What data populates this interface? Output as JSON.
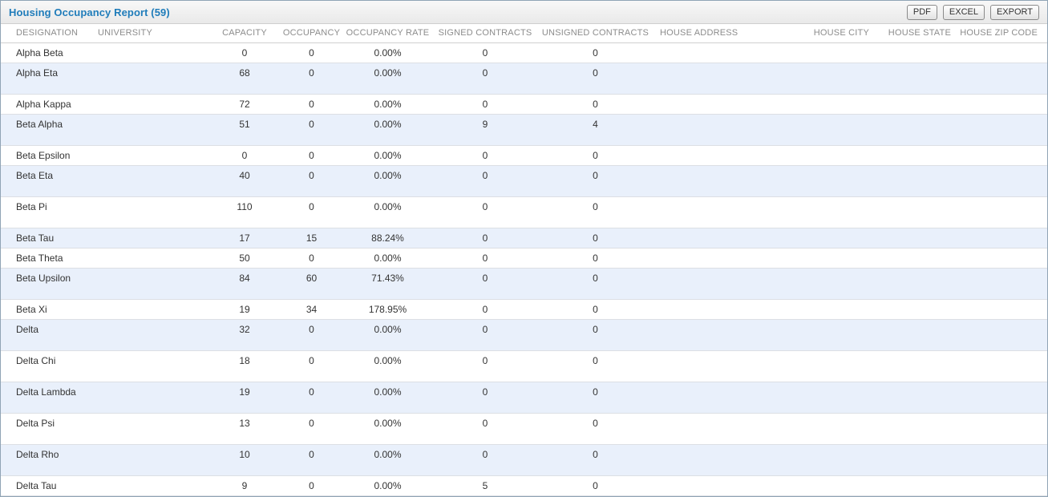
{
  "panel": {
    "title": "Housing Occupancy Report (59)"
  },
  "toolbar": {
    "buttons": [
      {
        "label": "PDF"
      },
      {
        "label": "EXCEL"
      },
      {
        "label": "EXPORT"
      }
    ]
  },
  "colors": {
    "title_text": "#1f7cba",
    "header_text": "#8c8c8c",
    "alt_row_background": "#e9f0fb",
    "panel_border": "#90a4b5",
    "row_text": "#333333"
  },
  "table": {
    "columns": [
      {
        "key": "designation",
        "label": "DESIGNATION",
        "align": "left"
      },
      {
        "key": "university",
        "label": "UNIVERSITY",
        "align": "left"
      },
      {
        "key": "capacity",
        "label": "CAPACITY",
        "align": "center"
      },
      {
        "key": "occupancy",
        "label": "OCCUPANCY",
        "align": "center"
      },
      {
        "key": "occupancy_rate",
        "label": "OCCUPANCY RATE",
        "align": "center"
      },
      {
        "key": "signed_contracts",
        "label": "SIGNED CONTRACTS",
        "align": "center"
      },
      {
        "key": "unsigned_contracts",
        "label": "UNSIGNED CONTRACTS",
        "align": "center"
      },
      {
        "key": "house_address",
        "label": "HOUSE ADDRESS",
        "align": "left"
      },
      {
        "key": "house_city",
        "label": "HOUSE CITY",
        "align": "right"
      },
      {
        "key": "house_state",
        "label": "HOUSE STATE",
        "align": "right"
      },
      {
        "key": "house_zip",
        "label": "HOUSE ZIP CODE",
        "align": "right"
      }
    ],
    "rows": [
      {
        "designation": "Alpha Beta",
        "university": "",
        "capacity": "0",
        "occupancy": "0",
        "occupancy_rate": "0.00%",
        "signed_contracts": "0",
        "unsigned_contracts": "0",
        "house_address": "",
        "house_city": "",
        "house_state": "",
        "house_zip": "",
        "tall": false
      },
      {
        "designation": "Alpha Eta",
        "university": "",
        "capacity": "68",
        "occupancy": "0",
        "occupancy_rate": "0.00%",
        "signed_contracts": "0",
        "unsigned_contracts": "0",
        "house_address": "",
        "house_city": "",
        "house_state": "",
        "house_zip": "",
        "tall": true
      },
      {
        "designation": "Alpha Kappa",
        "university": "",
        "capacity": "72",
        "occupancy": "0",
        "occupancy_rate": "0.00%",
        "signed_contracts": "0",
        "unsigned_contracts": "0",
        "house_address": "",
        "house_city": "",
        "house_state": "",
        "house_zip": "",
        "tall": false
      },
      {
        "designation": "Beta Alpha",
        "university": "",
        "capacity": "51",
        "occupancy": "0",
        "occupancy_rate": "0.00%",
        "signed_contracts": "9",
        "unsigned_contracts": "4",
        "house_address": "",
        "house_city": "",
        "house_state": "",
        "house_zip": "",
        "tall": true
      },
      {
        "designation": "Beta Epsilon",
        "university": "",
        "capacity": "0",
        "occupancy": "0",
        "occupancy_rate": "0.00%",
        "signed_contracts": "0",
        "unsigned_contracts": "0",
        "house_address": "",
        "house_city": "",
        "house_state": "",
        "house_zip": "",
        "tall": false
      },
      {
        "designation": "Beta Eta",
        "university": "",
        "capacity": "40",
        "occupancy": "0",
        "occupancy_rate": "0.00%",
        "signed_contracts": "0",
        "unsigned_contracts": "0",
        "house_address": "",
        "house_city": "",
        "house_state": "",
        "house_zip": "",
        "tall": true
      },
      {
        "designation": "Beta Pi",
        "university": "",
        "capacity": "110",
        "occupancy": "0",
        "occupancy_rate": "0.00%",
        "signed_contracts": "0",
        "unsigned_contracts": "0",
        "house_address": "",
        "house_city": "",
        "house_state": "",
        "house_zip": "",
        "tall": true
      },
      {
        "designation": "Beta Tau",
        "university": "",
        "capacity": "17",
        "occupancy": "15",
        "occupancy_rate": "88.24%",
        "signed_contracts": "0",
        "unsigned_contracts": "0",
        "house_address": "",
        "house_city": "",
        "house_state": "",
        "house_zip": "",
        "tall": false
      },
      {
        "designation": "Beta Theta",
        "university": "",
        "capacity": "50",
        "occupancy": "0",
        "occupancy_rate": "0.00%",
        "signed_contracts": "0",
        "unsigned_contracts": "0",
        "house_address": "",
        "house_city": "",
        "house_state": "",
        "house_zip": "",
        "tall": false
      },
      {
        "designation": "Beta Upsilon",
        "university": "",
        "capacity": "84",
        "occupancy": "60",
        "occupancy_rate": "71.43%",
        "signed_contracts": "0",
        "unsigned_contracts": "0",
        "house_address": "",
        "house_city": "",
        "house_state": "",
        "house_zip": "",
        "tall": true
      },
      {
        "designation": "Beta Xi",
        "university": "",
        "capacity": "19",
        "occupancy": "34",
        "occupancy_rate": "178.95%",
        "signed_contracts": "0",
        "unsigned_contracts": "0",
        "house_address": "",
        "house_city": "",
        "house_state": "",
        "house_zip": "",
        "tall": false
      },
      {
        "designation": "Delta",
        "university": "",
        "capacity": "32",
        "occupancy": "0",
        "occupancy_rate": "0.00%",
        "signed_contracts": "0",
        "unsigned_contracts": "0",
        "house_address": "",
        "house_city": "",
        "house_state": "",
        "house_zip": "",
        "tall": true
      },
      {
        "designation": "Delta Chi",
        "university": "",
        "capacity": "18",
        "occupancy": "0",
        "occupancy_rate": "0.00%",
        "signed_contracts": "0",
        "unsigned_contracts": "0",
        "house_address": "",
        "house_city": "",
        "house_state": "",
        "house_zip": "",
        "tall": true
      },
      {
        "designation": "Delta Lambda",
        "university": "",
        "capacity": "19",
        "occupancy": "0",
        "occupancy_rate": "0.00%",
        "signed_contracts": "0",
        "unsigned_contracts": "0",
        "house_address": "",
        "house_city": "",
        "house_state": "",
        "house_zip": "",
        "tall": true
      },
      {
        "designation": "Delta Psi",
        "university": "",
        "capacity": "13",
        "occupancy": "0",
        "occupancy_rate": "0.00%",
        "signed_contracts": "0",
        "unsigned_contracts": "0",
        "house_address": "",
        "house_city": "",
        "house_state": "",
        "house_zip": "",
        "tall": true
      },
      {
        "designation": "Delta Rho",
        "university": "",
        "capacity": "10",
        "occupancy": "0",
        "occupancy_rate": "0.00%",
        "signed_contracts": "0",
        "unsigned_contracts": "0",
        "house_address": "",
        "house_city": "",
        "house_state": "",
        "house_zip": "",
        "tall": true
      },
      {
        "designation": "Delta Tau",
        "university": "",
        "capacity": "9",
        "occupancy": "0",
        "occupancy_rate": "0.00%",
        "signed_contracts": "5",
        "unsigned_contracts": "0",
        "house_address": "",
        "house_city": "",
        "house_state": "",
        "house_zip": "",
        "tall": false
      }
    ]
  }
}
